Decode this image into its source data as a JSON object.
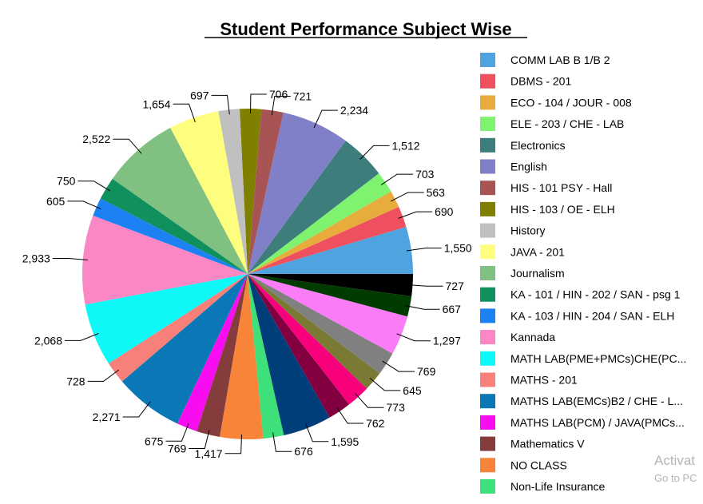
{
  "chart_data": {
    "type": "pie",
    "title": "Student Performance Subject Wise",
    "legend_position": "right",
    "slices": [
      {
        "label": "COMM LAB B 1/B 2",
        "value": 1550,
        "display": "1,550",
        "color": "#4fa3de"
      },
      {
        "label": "DBMS - 201",
        "value": 690,
        "display": "690",
        "color": "#ef5060"
      },
      {
        "label": "ECO - 104 / JOUR - 008",
        "value": 563,
        "display": "563",
        "color": "#e8ac3c"
      },
      {
        "label": "ELE - 203 / CHE - LAB",
        "value": 703,
        "display": "703",
        "color": "#7ff26f"
      },
      {
        "label": "Electronics",
        "value": 1512,
        "display": "1,512",
        "color": "#3d7d7b"
      },
      {
        "label": "English",
        "value": 2234,
        "display": "2,234",
        "color": "#8080c8"
      },
      {
        "label": "HIS - 101  PSY - Hall",
        "value": 721,
        "display": "721",
        "color": "#a85454"
      },
      {
        "label": "HIS - 103 / OE - ELH",
        "value": 706,
        "display": "706",
        "color": "#808000"
      },
      {
        "label": "History",
        "value": 697,
        "display": "697",
        "color": "#c0c0c0"
      },
      {
        "label": "JAVA - 201",
        "value": 1654,
        "display": "1,654",
        "color": "#fefe7e"
      },
      {
        "label": "Journalism",
        "value": 2522,
        "display": "2,522",
        "color": "#80c080"
      },
      {
        "label": "KA - 101 / HIN - 202 / SAN - psg 1",
        "value": 750,
        "display": "750",
        "color": "#10905c"
      },
      {
        "label": "KA - 103 / HIN - 204 / SAN - ELH",
        "value": 605,
        "display": "605",
        "color": "#1c82f4"
      },
      {
        "label": "Kannada",
        "value": 2933,
        "display": "2,933",
        "color": "#fb87c4"
      },
      {
        "label": "MATH LAB(PME+PMCs)CHE(PC...",
        "value": 2068,
        "display": "2,068",
        "color": "#0ff8f8"
      },
      {
        "label": "MATHS - 201",
        "value": 728,
        "display": "728",
        "color": "#f8807a"
      },
      {
        "label": "MATHS LAB(EMCs)B2 / CHE - L...",
        "value": 2271,
        "display": "2,271",
        "color": "#0a78b6"
      },
      {
        "label": "MATHS LAB(PCM) / JAVA(PMCs...",
        "value": 675,
        "display": "675",
        "color": "#f80cf0"
      },
      {
        "label": "Mathematics V",
        "value": 769,
        "display": "769",
        "color": "#843c3c"
      },
      {
        "label": "NO CLASS",
        "value": 1417,
        "display": "1,417",
        "color": "#f8843a"
      },
      {
        "label": "Non-Life Insurance",
        "value": 676,
        "display": "676",
        "color": "#3ee07a"
      },
      {
        "label": "",
        "value": 1595,
        "display": "1,595",
        "color": "#003e7a"
      },
      {
        "label": "",
        "value": 762,
        "display": "762",
        "color": "#820040"
      },
      {
        "label": "",
        "value": 773,
        "display": "773",
        "color": "#f8007c"
      },
      {
        "label": "",
        "value": 645,
        "display": "645",
        "color": "#7a7a34"
      },
      {
        "label": "",
        "value": 769,
        "display": "769",
        "color": "#808080"
      },
      {
        "label": "",
        "value": 1297,
        "display": "1,297",
        "color": "#fa7cf6"
      },
      {
        "label": "",
        "value": 667,
        "display": "667",
        "color": "#003c00"
      },
      {
        "label": "",
        "value": 727,
        "display": "727",
        "color": "#000000"
      }
    ]
  },
  "watermark": {
    "line1": "Activat",
    "line2": "Go to PC"
  }
}
